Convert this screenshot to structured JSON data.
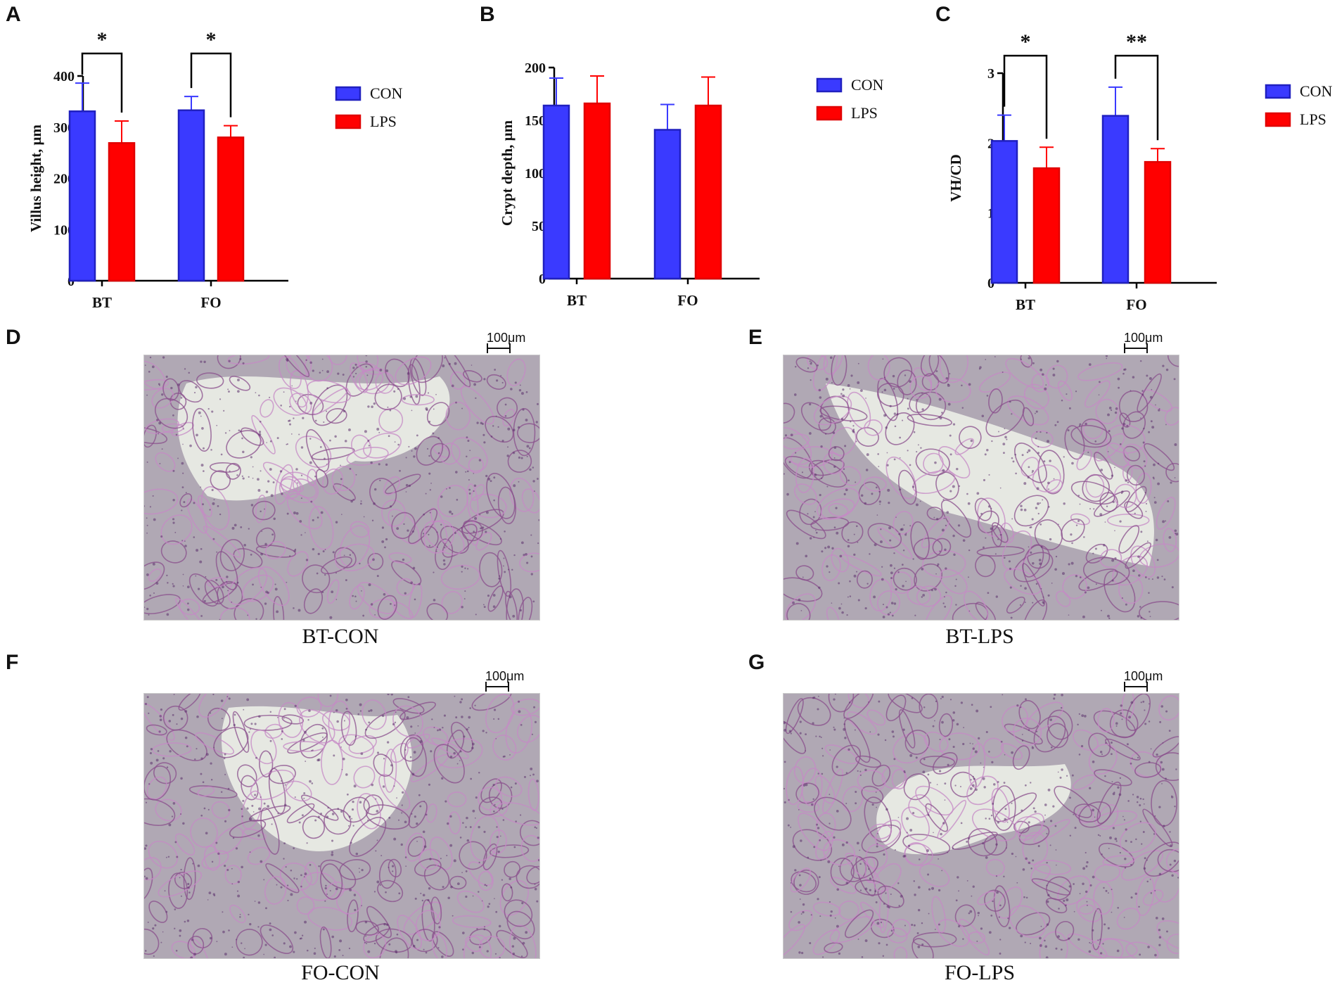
{
  "colors": {
    "con": "#3a3aff",
    "lps": "#ff0000",
    "axis": "#000000"
  },
  "panels": {
    "A": "A",
    "B": "B",
    "C": "C",
    "D": "D",
    "E": "E",
    "F": "F",
    "G": "G"
  },
  "chart_data": [
    {
      "id": "A",
      "type": "bar",
      "categories": [
        "BT",
        "FO"
      ],
      "ylabel": "Villus height, μm",
      "ylim": [
        0,
        400
      ],
      "yticks": [
        0,
        100,
        200,
        300,
        400
      ],
      "series": [
        {
          "name": "CON",
          "values": [
            331,
            333
          ],
          "errors": [
            55,
            27
          ]
        },
        {
          "name": "LPS",
          "values": [
            269,
            280
          ],
          "errors": [
            43,
            23
          ]
        }
      ],
      "significance": [
        "*",
        "*"
      ],
      "legend": [
        "CON",
        "LPS"
      ]
    },
    {
      "id": "B",
      "type": "bar",
      "categories": [
        "BT",
        "FO"
      ],
      "ylabel": "Crypt depth, μm",
      "ylim": [
        0,
        200
      ],
      "yticks": [
        0,
        50,
        100,
        150,
        200
      ],
      "series": [
        {
          "name": "CON",
          "values": [
            164,
            141
          ],
          "errors": [
            26,
            24
          ]
        },
        {
          "name": "LPS",
          "values": [
            166,
            164
          ],
          "errors": [
            26,
            27
          ]
        }
      ],
      "significance": [
        "",
        ""
      ],
      "legend": [
        "CON",
        "LPS"
      ]
    },
    {
      "id": "C",
      "type": "bar",
      "categories": [
        "BT",
        "FO"
      ],
      "ylabel": "VH/CD",
      "ylim": [
        0,
        3
      ],
      "yticks": [
        0,
        1,
        2,
        3
      ],
      "series": [
        {
          "name": "CON",
          "values": [
            2.03,
            2.39
          ],
          "errors": [
            0.37,
            0.41
          ]
        },
        {
          "name": "LPS",
          "values": [
            1.64,
            1.73
          ],
          "errors": [
            0.3,
            0.19
          ]
        }
      ],
      "significance": [
        "*",
        "**"
      ],
      "legend": [
        "CON",
        "LPS"
      ]
    }
  ],
  "micrographs": [
    {
      "id": "D",
      "caption": "BT-CON",
      "scale": "100μm"
    },
    {
      "id": "E",
      "caption": "BT-LPS",
      "scale": "100μm"
    },
    {
      "id": "F",
      "caption": "FO-CON",
      "scale": "100μm"
    },
    {
      "id": "G",
      "caption": "FO-LPS",
      "scale": "100μm"
    }
  ]
}
